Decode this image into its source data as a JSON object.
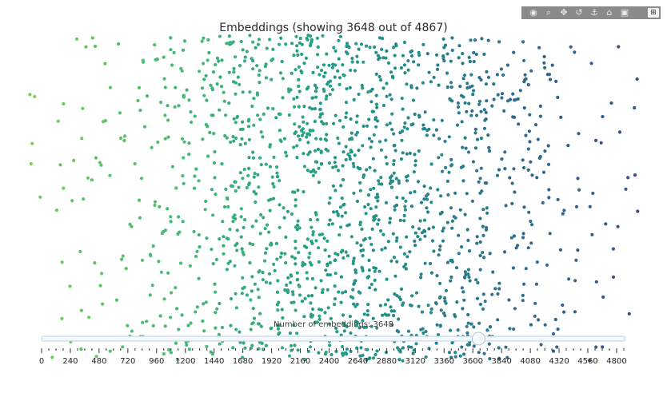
{
  "chart_data": {
    "type": "scatter",
    "title": "Embeddings (showing 3648 out of 4867)",
    "shown": 3648,
    "total": 4867,
    "color_scale": "viridis",
    "x_range": [
      0,
      4867
    ],
    "y_range": [
      0,
      1
    ],
    "note_points": "dense cloud of points; color varies with embedding index",
    "slider": {
      "label": "Number of embeddings: 3648",
      "min": 0,
      "max": 4867,
      "value": 3648,
      "tick_labels": [
        "0",
        "240",
        "480",
        "720",
        "960",
        "1200",
        "1440",
        "1680",
        "1920",
        "2160",
        "2400",
        "2640",
        "2880",
        "3120",
        "3360",
        "3600",
        "3840",
        "4080",
        "4320",
        "4560",
        "4800"
      ]
    }
  },
  "modebar": {
    "buttons": [
      "camera-icon",
      "zoom-icon",
      "pan-icon",
      "lasso-icon",
      "autoscale-icon",
      "home-icon",
      "reset-icon",
      "plotly-logo"
    ],
    "glyphs": [
      "◉",
      "⌕",
      "✥",
      "↺",
      "⚓",
      "⌂",
      "▣",
      "⊞"
    ]
  },
  "colors": {
    "high_index": "#3b4d8a",
    "mid_index": "#2a8c8a",
    "low_index": "#7ccf5a"
  }
}
